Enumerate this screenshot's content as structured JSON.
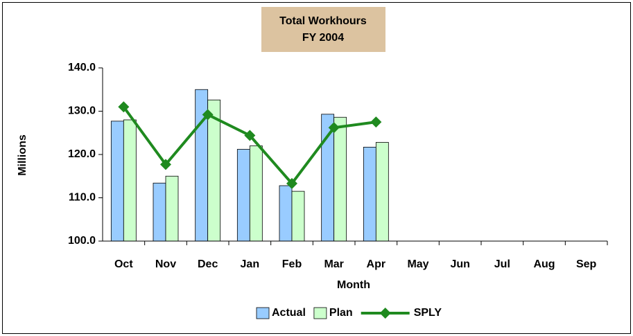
{
  "chart_data": {
    "type": "bar_line",
    "title": [
      "Total Workhours",
      "FY 2004"
    ],
    "x_label": "Month",
    "y_label": "Millions",
    "categories": [
      "Oct",
      "Nov",
      "Dec",
      "Jan",
      "Feb",
      "Mar",
      "Apr",
      "May",
      "Jun",
      "Jul",
      "Aug",
      "Sep"
    ],
    "series": [
      {
        "name": "Actual",
        "type": "bar",
        "color": "#99ccff",
        "values": [
          127.7,
          113.4,
          135.0,
          121.2,
          112.8,
          129.3,
          121.7,
          null,
          null,
          null,
          null,
          null
        ]
      },
      {
        "name": "Plan",
        "type": "bar",
        "color": "#ccffcc",
        "values": [
          128.0,
          115.0,
          132.6,
          122.0,
          111.5,
          128.6,
          122.8,
          null,
          null,
          null,
          null,
          null
        ]
      },
      {
        "name": "SPLY",
        "type": "line",
        "color": "#1f8a1f",
        "values": [
          131.0,
          117.7,
          129.2,
          124.4,
          113.3,
          126.2,
          127.5,
          null,
          null,
          null,
          null,
          null
        ]
      }
    ],
    "ylim": [
      100,
      140
    ],
    "yticks": [
      {
        "value": 100,
        "label": "100.0"
      },
      {
        "value": 110,
        "label": "110.0"
      },
      {
        "value": 120,
        "label": "120.0"
      },
      {
        "value": 130,
        "label": "130.0"
      },
      {
        "value": 140,
        "label": "140.0"
      }
    ],
    "grid": false,
    "legend": "bottom"
  }
}
